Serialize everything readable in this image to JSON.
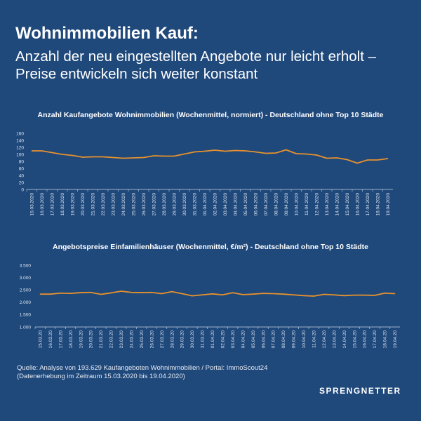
{
  "header": {
    "title": "Wohnimmobilien Kauf:",
    "subtitle": "Anzahl der neu eingestellten Angebote nur leicht erholt – Preise entwickeln sich weiter konstant"
  },
  "colors": {
    "background": "#1f487b",
    "line": "#e8922c"
  },
  "chart_data": [
    {
      "type": "line",
      "title": "Anzahl Kaufangebote Wohnimmobilien (Wochenmittel, normiert) - Deutschland ohne Top 10 Städte",
      "xlabel": "",
      "ylabel": "",
      "ylim": [
        0,
        160
      ],
      "yticks": [
        "0",
        "20",
        "40",
        "60",
        "80",
        "100",
        "120",
        "140",
        "160"
      ],
      "categories": [
        "15.03.2020",
        "16.03.2020",
        "17.03.2020",
        "18.03.2020",
        "19.03.2020",
        "20.03.2020",
        "21.03.2020",
        "22.03.2020",
        "23.03.2020",
        "24.03.2020",
        "25.03.2020",
        "26.03.2020",
        "27.03.2020",
        "28.03.2020",
        "29.03.2020",
        "30.03.2020",
        "31.03.2020",
        "01.04.2020",
        "02.04.2020",
        "03.04.2020",
        "04.04.2020",
        "05.04.2020",
        "06.04.2020",
        "07.04.2020",
        "08.04.2020",
        "09.04.2020",
        "10.04.2020",
        "11.04.2020",
        "12.04.2020",
        "13.04.2020",
        "14.04.2020",
        "15.04.2020",
        "16.04.2020",
        "17.04.2020",
        "18.04.2020",
        "19.04.2020"
      ],
      "values": [
        110,
        110,
        105,
        100,
        97,
        92,
        93,
        93,
        91,
        89,
        90,
        91,
        96,
        95,
        95,
        101,
        107,
        109,
        112,
        109,
        111,
        110,
        107,
        103,
        104,
        113,
        102,
        101,
        98,
        89,
        90,
        85,
        75,
        84,
        84,
        88
      ]
    },
    {
      "type": "line",
      "title": "Angebotspreise Einfamilienhäuser (Wochenmittel, €/m²) - Deutschland ohne Top 10 Städte",
      "xlabel": "",
      "ylabel": "",
      "ylim": [
        1000,
        3500
      ],
      "yticks": [
        "1.000",
        "1.500",
        "2.000",
        "2.500",
        "3.000",
        "3.500"
      ],
      "categories": [
        "15.03.20",
        "16.03.20",
        "17.03.20",
        "18.03.20",
        "19.03.20",
        "20.03.20",
        "21.03.20",
        "22.03.20",
        "23.03.20",
        "24.03.20",
        "25.03.20",
        "26.03.20",
        "27.03.20",
        "28.03.20",
        "29.03.20",
        "30.03.20",
        "31.03.20",
        "01.04.20",
        "02.04.20",
        "03.04.20",
        "04.04.20",
        "05.04.20",
        "06.04.20",
        "07.04.20",
        "08.04.20",
        "09.04.20",
        "10.04.20",
        "11.04.20",
        "12.04.20",
        "13.04.20",
        "14.04.20",
        "15.04.20",
        "16.04.20",
        "17.04.20",
        "18.04.20",
        "19.04.20"
      ],
      "values": [
        2330,
        2330,
        2370,
        2360,
        2390,
        2400,
        2320,
        2380,
        2450,
        2400,
        2390,
        2400,
        2350,
        2430,
        2350,
        2260,
        2300,
        2340,
        2300,
        2390,
        2310,
        2330,
        2360,
        2350,
        2330,
        2300,
        2270,
        2250,
        2320,
        2300,
        2270,
        2290,
        2290,
        2280,
        2370,
        2350
      ]
    }
  ],
  "footer": {
    "source": "Quelle: Analyse von 193.629 Kaufangeboten Wohnimmobilien / Portal: ImmoScout24",
    "period": "(Datenerhebung im Zeitraum 15.03.2020 bis 19.04.2020)",
    "logo": "SPRENGNETTER"
  }
}
